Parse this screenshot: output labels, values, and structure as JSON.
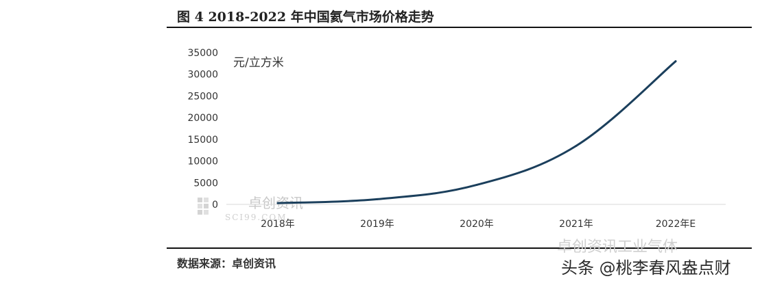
{
  "figure": {
    "title": "图 4   2018-2022 年中国氦气市场价格走势",
    "source": "数据来源：卓创资讯"
  },
  "watermarks": {
    "chart_logo": "卓创资讯",
    "chart_logo_sub": "SCI99.COM",
    "wechat": "卓创资讯工业气体",
    "platform": "头条 @桃李春风盎点财"
  },
  "colors": {
    "line": "#1b3f5c",
    "axis": "#d9d9d9"
  },
  "chart_data": {
    "type": "line",
    "categories": [
      "2018年",
      "2019年",
      "2020年",
      "2021年",
      "2022年E"
    ],
    "series": [
      {
        "values": [
          300,
          1200,
          4500,
          13500,
          33000
        ]
      }
    ],
    "ylabel": "元/立方米",
    "yticks": [
      "35000",
      "30000",
      "25000",
      "20000",
      "15000",
      "10000",
      "5000",
      "0"
    ],
    "ylim": [
      0,
      35000
    ],
    "grid": false,
    "legend": "none"
  }
}
